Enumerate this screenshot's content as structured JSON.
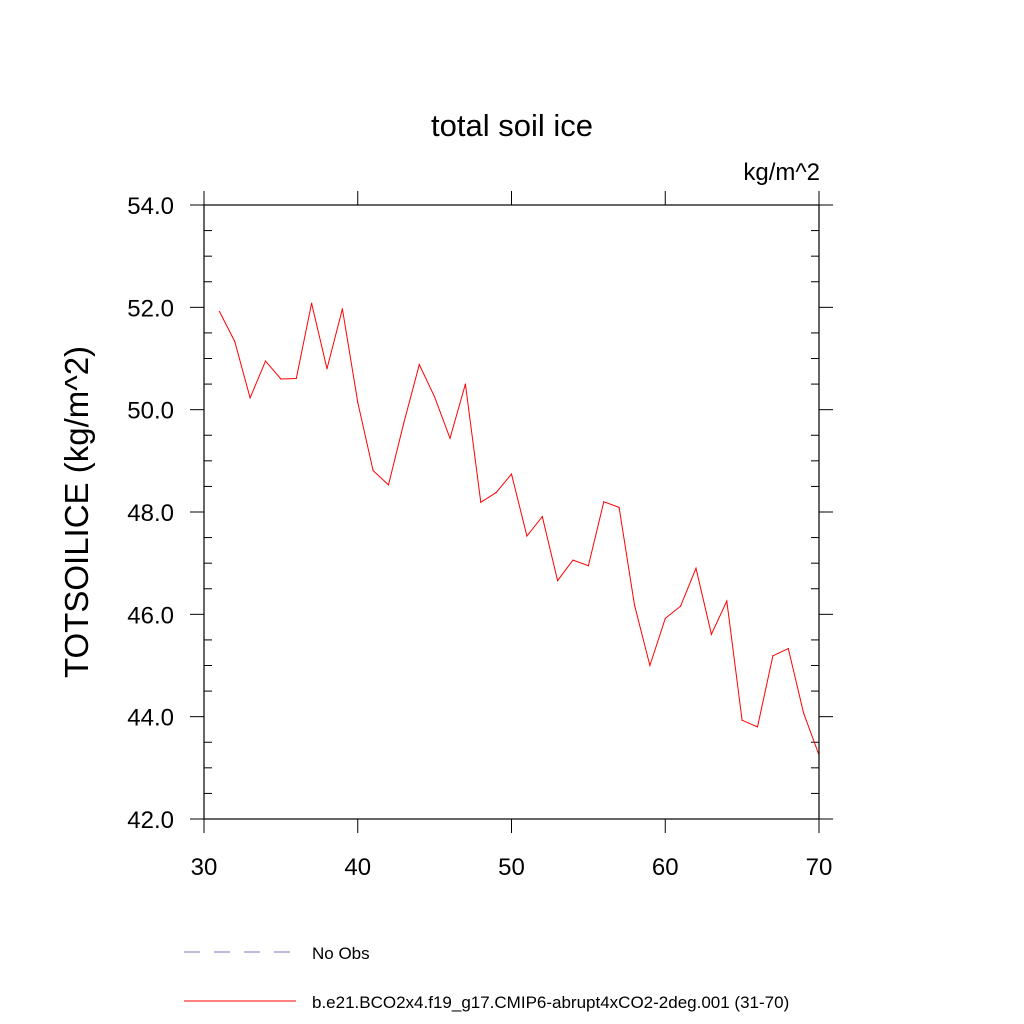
{
  "chart_data": {
    "type": "line",
    "title": "total soil ice",
    "units": "kg/m^2",
    "xlabel": "",
    "ylabel": "TOTSOILICE  (kg/m^2)",
    "xlim": [
      30,
      70
    ],
    "ylim": [
      42.0,
      54.0
    ],
    "x_ticks": [
      30,
      40,
      50,
      60,
      70
    ],
    "x_tick_labels": [
      "30",
      "40",
      "50",
      "60",
      "70"
    ],
    "y_ticks": [
      42,
      44,
      46,
      48,
      50,
      52,
      54
    ],
    "y_tick_labels": [
      "42.0",
      "44.0",
      "46.0",
      "48.0",
      "50.0",
      "52.0",
      "54.0"
    ],
    "grid": false,
    "legend_position": "bottom",
    "legend": [
      {
        "label": "No Obs",
        "color": "#7b78b8",
        "dash": "dashed"
      },
      {
        "label": "b.e21.BCO2x4.f19_g17.CMIP6-abrupt4xCO2-2deg.001 (31-70)",
        "color": "#ff0000",
        "dash": "solid"
      }
    ],
    "series": [
      {
        "color": "#ff0000",
        "x": [
          31,
          32,
          33,
          34,
          35,
          36,
          37,
          38,
          39,
          40,
          41,
          42,
          43,
          44,
          45,
          46,
          47,
          48,
          49,
          50,
          51,
          52,
          53,
          54,
          55,
          56,
          57,
          58,
          59,
          60,
          61,
          62,
          63,
          64,
          65,
          66,
          67,
          68,
          69,
          70
        ],
        "values": [
          51.92,
          51.33,
          50.23,
          50.95,
          50.6,
          50.61,
          52.08,
          50.8,
          51.97,
          50.14,
          48.81,
          48.53,
          49.75,
          50.88,
          50.25,
          49.44,
          50.5,
          48.19,
          48.38,
          48.74,
          47.53,
          47.91,
          46.66,
          47.06,
          46.95,
          48.2,
          48.09,
          46.18,
          45.0,
          45.92,
          46.16,
          46.9,
          45.61,
          46.26,
          43.93,
          43.8,
          45.19,
          45.33,
          44.07,
          43.25
        ]
      }
    ]
  }
}
